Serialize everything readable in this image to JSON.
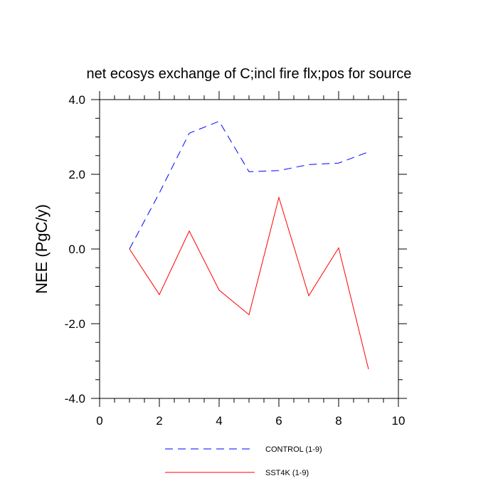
{
  "chart_data": {
    "type": "line",
    "title": "net ecosys exchange of C;incl fire flx;pos for source",
    "xlabel": "",
    "ylabel": "NEE  (PgC/y)",
    "xlim": [
      0,
      10
    ],
    "ylim": [
      -4,
      4
    ],
    "x_ticks": [
      0,
      2,
      4,
      6,
      8,
      10
    ],
    "x_tick_labels": [
      "0",
      "2",
      "4",
      "6",
      "8",
      "10"
    ],
    "y_ticks": [
      -4,
      -2,
      0,
      2,
      4
    ],
    "y_tick_labels": [
      "-4.0",
      "-2.0",
      "0.0",
      "2.0",
      "4.0"
    ],
    "grid": false,
    "legend_position": "bottom-center",
    "series": [
      {
        "name": "CONTROL (1-9)",
        "color": "#0000ff",
        "line_style": "dashed",
        "x": [
          1,
          2,
          3,
          4,
          5,
          6,
          7,
          8,
          9
        ],
        "y": [
          0.0,
          1.5,
          3.1,
          3.42,
          2.07,
          2.1,
          2.26,
          2.3,
          2.6
        ]
      },
      {
        "name": "SST4K (1-9)",
        "color": "#ff0000",
        "line_style": "solid",
        "x": [
          1,
          2,
          3,
          4,
          5,
          6,
          7,
          8,
          9
        ],
        "y": [
          0.0,
          -1.22,
          0.48,
          -1.1,
          -1.76,
          1.38,
          -1.25,
          0.03,
          -3.22
        ]
      }
    ]
  }
}
